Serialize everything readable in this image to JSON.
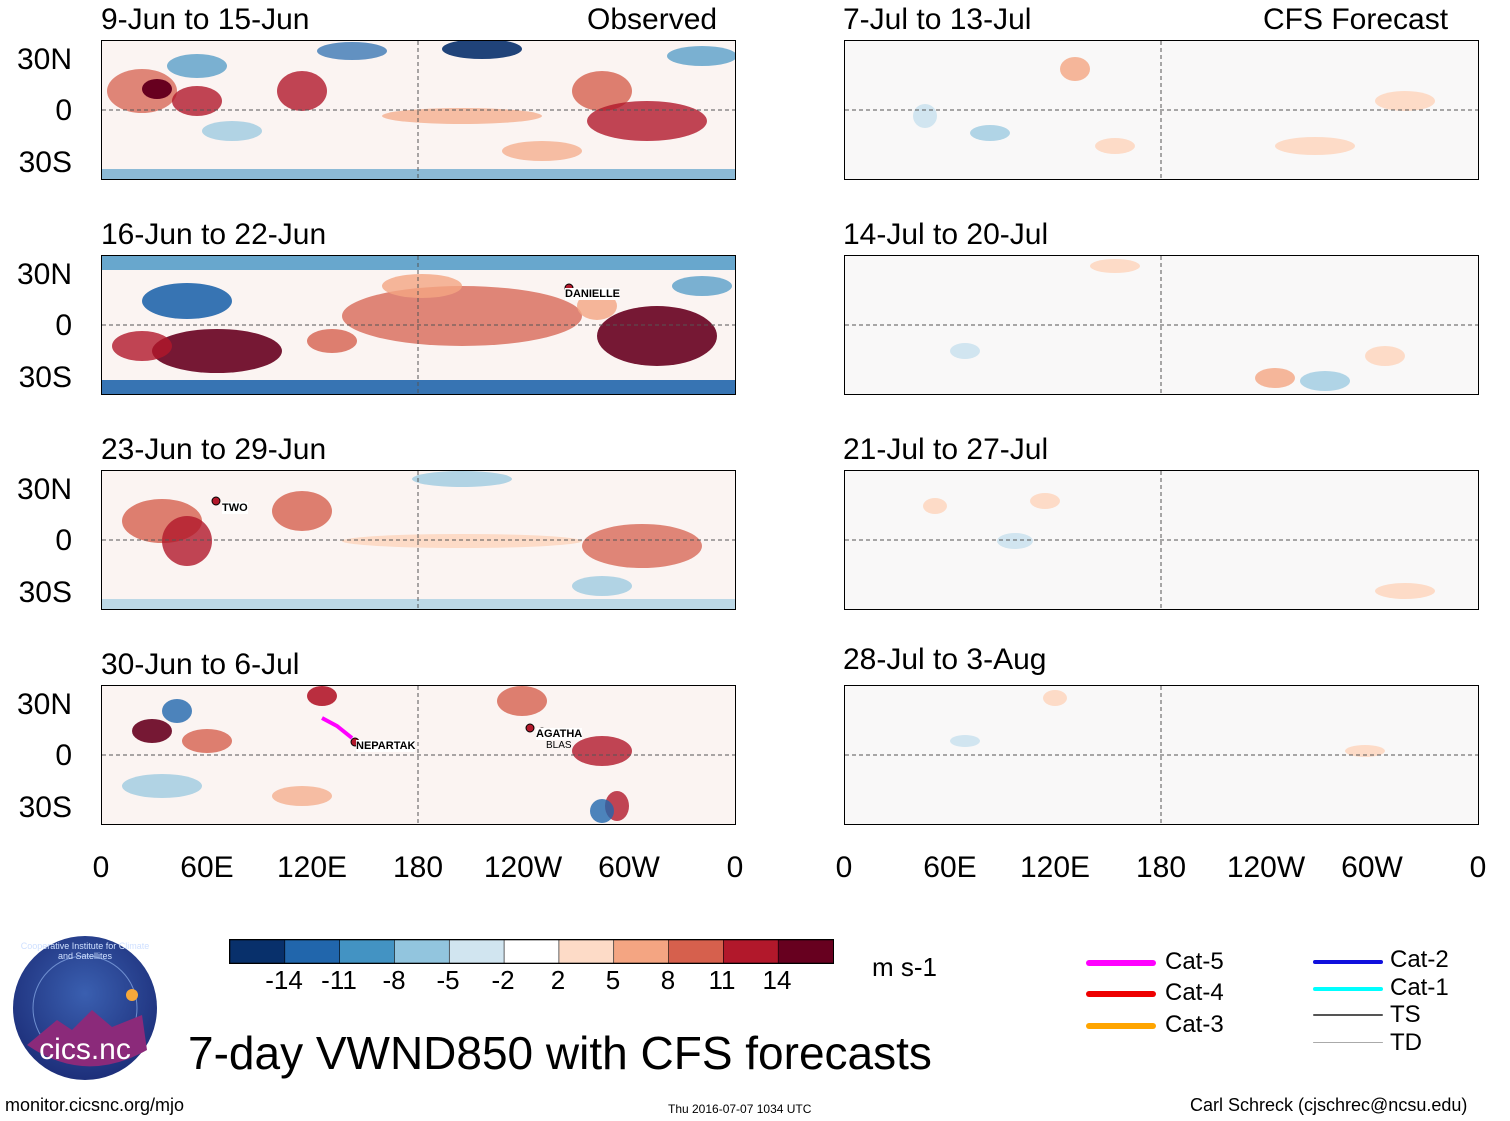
{
  "header": {
    "left_label": "Observed",
    "right_label": "CFS Forecast"
  },
  "panels": {
    "observed": [
      {
        "title": "9-Jun to 15-Jun",
        "storms": []
      },
      {
        "title": "16-Jun to 22-Jun",
        "storms": [
          {
            "name": "DANIELLE"
          }
        ]
      },
      {
        "title": "23-Jun to 29-Jun",
        "storms": [
          {
            "name": "TWO"
          }
        ]
      },
      {
        "title": "30-Jun to 6-Jul",
        "storms": [
          {
            "name": "NEPARTAK"
          },
          {
            "name": "AGATHA"
          },
          {
            "name": "BLAS"
          }
        ]
      }
    ],
    "forecast": [
      {
        "title": "7-Jul to 13-Jul"
      },
      {
        "title": "14-Jul to 20-Jul"
      },
      {
        "title": "21-Jul to 27-Jul"
      },
      {
        "title": "28-Jul to 3-Aug"
      }
    ]
  },
  "axes": {
    "y_ticks": [
      "30N",
      "0",
      "30S"
    ],
    "x_ticks": [
      "0",
      "60E",
      "120E",
      "180",
      "120W",
      "60W",
      "0"
    ]
  },
  "colorbar": {
    "unit": "m s-1",
    "tick_labels": [
      "-14",
      "-11",
      "-8",
      "-5",
      "-2",
      "2",
      "5",
      "8",
      "11",
      "14"
    ],
    "colors": [
      "#08306b",
      "#2166ac",
      "#4393c3",
      "#92c5de",
      "#d1e5f0",
      "#ffffff",
      "#fddbc7",
      "#f4a582",
      "#d6604d",
      "#b2182b",
      "#67001f"
    ]
  },
  "legend": {
    "items": [
      {
        "label": "Cat-5",
        "color": "#ff00ff"
      },
      {
        "label": "Cat-4",
        "color": "#ee0000"
      },
      {
        "label": "Cat-3",
        "color": "#ffa500"
      },
      {
        "label": "Cat-2",
        "color": "#1010dd"
      },
      {
        "label": "Cat-1",
        "color": "#00ffff"
      },
      {
        "label": "TS",
        "color": "#555555"
      },
      {
        "label": "TD",
        "color": "#aaaaaa"
      }
    ]
  },
  "logo": {
    "text": "cics.nc",
    "ring_text": "Cooperative Institute for Climate and Satellites"
  },
  "main_title": "7-day VWND850 with CFS forecasts",
  "footer": {
    "url": "monitor.cicsnc.org/mjo",
    "timestamp": "Thu 2016-07-07 1034 UTC",
    "author": "Carl Schreck (cjschrec@ncsu.edu)"
  }
}
